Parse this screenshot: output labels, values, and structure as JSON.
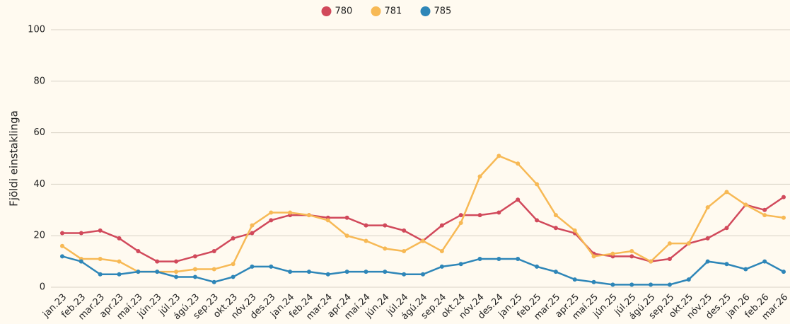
{
  "chart_data": {
    "type": "line",
    "y_label": "Fjöldi einstaklinga",
    "categories": [
      "jan.23",
      "feb.23",
      "mar.23",
      "apr.23",
      "maí.23",
      "jún.23",
      "júl.23",
      "ágú.23",
      "sep.23",
      "okt.23",
      "nóv.23",
      "des.23",
      "jan.24",
      "feb.24",
      "mar.24",
      "apr.24",
      "maí.24",
      "jún.24",
      "júl.24",
      "ágú.24",
      "sep.24",
      "okt.24",
      "nóv.24",
      "des.24",
      "jan.25",
      "feb.25",
      "mar.25",
      "apr.25",
      "maí.25",
      "jún.25",
      "júl.25",
      "ágú.25",
      "sep.25",
      "okt.25",
      "nóv.25",
      "des.25",
      "jan.26",
      "feb.26",
      "mar.26"
    ],
    "series": [
      {
        "name": "780",
        "color": "#d1495b",
        "values": [
          21,
          21,
          22,
          19,
          14,
          10,
          10,
          12,
          14,
          19,
          21,
          26,
          28,
          28,
          27,
          27,
          24,
          24,
          22,
          18,
          24,
          28,
          28,
          29,
          34,
          26,
          23,
          21,
          13,
          12,
          12,
          10,
          11,
          17,
          19,
          23,
          32,
          30,
          35
        ]
      },
      {
        "name": "781",
        "color": "#f7b955",
        "values": [
          16,
          11,
          11,
          10,
          6,
          6,
          6,
          7,
          7,
          9,
          24,
          29,
          29,
          28,
          26,
          20,
          18,
          15,
          14,
          18,
          14,
          25,
          43,
          51,
          48,
          40,
          28,
          22,
          12,
          13,
          14,
          10,
          17,
          17,
          31,
          37,
          32,
          28,
          27
        ]
      },
      {
        "name": "785",
        "color": "#2e86b8",
        "values": [
          12,
          10,
          5,
          5,
          6,
          6,
          4,
          4,
          2,
          4,
          8,
          8,
          6,
          6,
          5,
          6,
          6,
          6,
          5,
          5,
          8,
          9,
          11,
          11,
          11,
          8,
          6,
          3,
          2,
          1,
          1,
          1,
          1,
          3,
          10,
          9,
          7,
          10,
          6
        ]
      }
    ],
    "ylim": [
      0,
      100
    ],
    "yticks": [
      0,
      20,
      40,
      60,
      80,
      100
    ],
    "grid": true,
    "legend": "top"
  }
}
